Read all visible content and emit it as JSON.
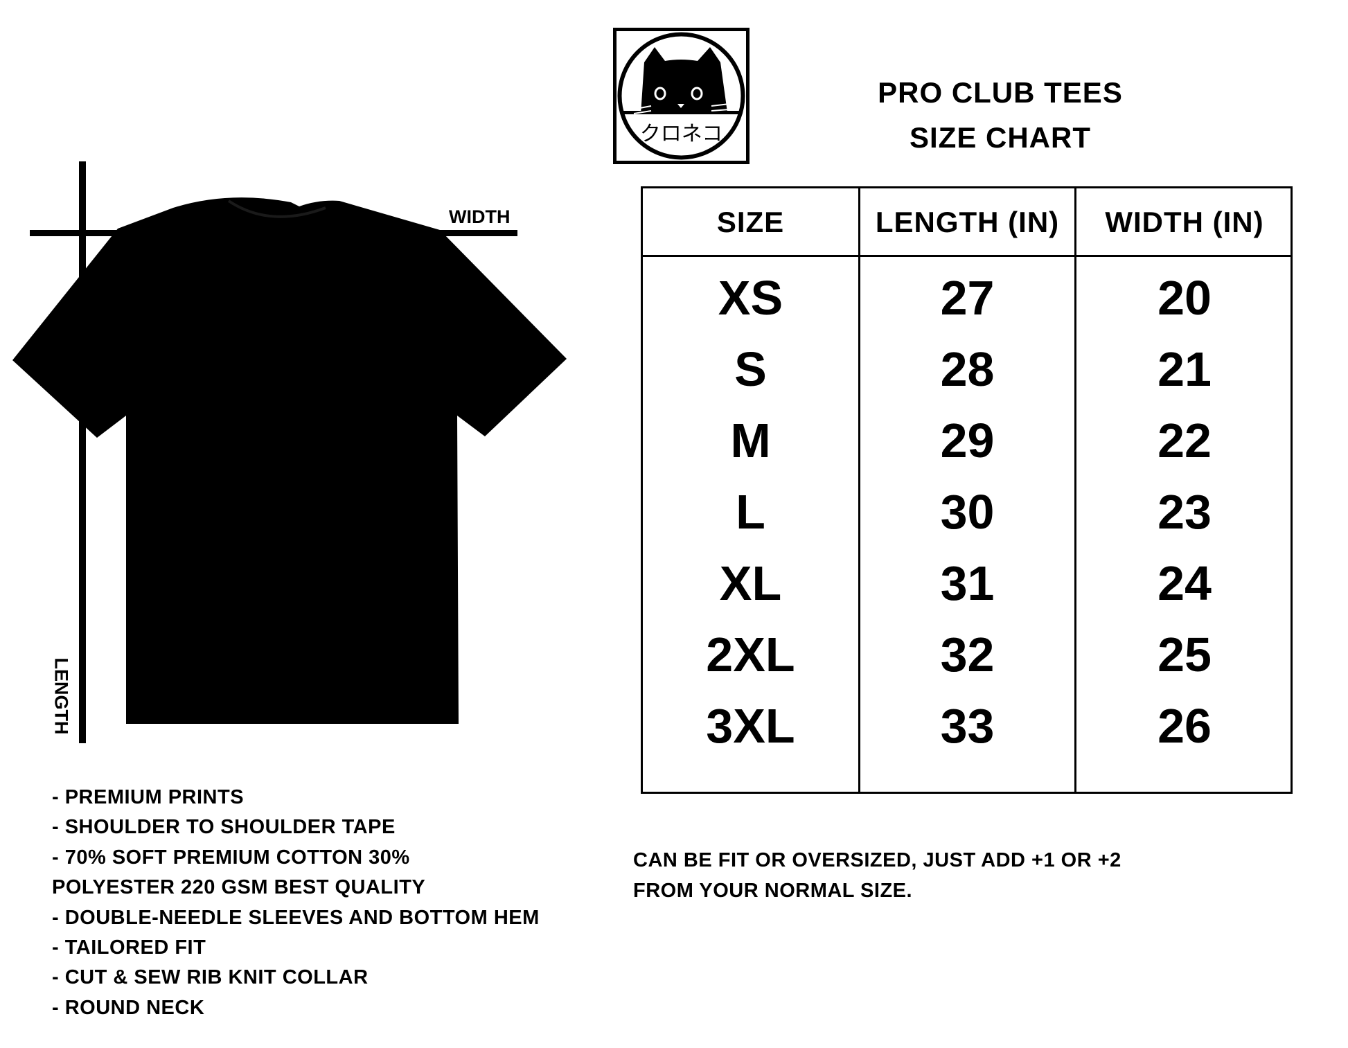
{
  "logo": {
    "text": "クロネコ",
    "icon": "black-cat-face-icon"
  },
  "title": {
    "line1": "PRO CLUB TEES",
    "line2": "SIZE CHART"
  },
  "diagram": {
    "width_label": "WIDTH",
    "length_label": "LENGTH",
    "garment_color": "#000000"
  },
  "table": {
    "headers": [
      "SIZE",
      "LENGTH (IN)",
      "WIDTH (IN)"
    ],
    "rows": [
      [
        "XS",
        "27",
        "20"
      ],
      [
        "S",
        "28",
        "21"
      ],
      [
        "M",
        "29",
        "22"
      ],
      [
        "L",
        "30",
        "23"
      ],
      [
        "XL",
        "31",
        "24"
      ],
      [
        "2XL",
        "32",
        "25"
      ],
      [
        "3XL",
        "33",
        "26"
      ]
    ]
  },
  "features": [
    "- PREMIUM PRINTS",
    "- SHOULDER TO SHOULDER TAPE",
    "- 70% SOFT PREMIUM COTTON 30%",
    "POLYESTER 220 GSM BEST QUALITY",
    "- DOUBLE-NEEDLE SLEEVES AND BOTTOM HEM",
    "- TAILORED FIT",
    "- CUT & SEW RIB KNIT COLLAR",
    "- ROUND NECK"
  ],
  "note": {
    "line1": "CAN BE FIT OR OVERSIZED, JUST ADD +1 OR +2",
    "line2": "FROM YOUR NORMAL SIZE."
  }
}
